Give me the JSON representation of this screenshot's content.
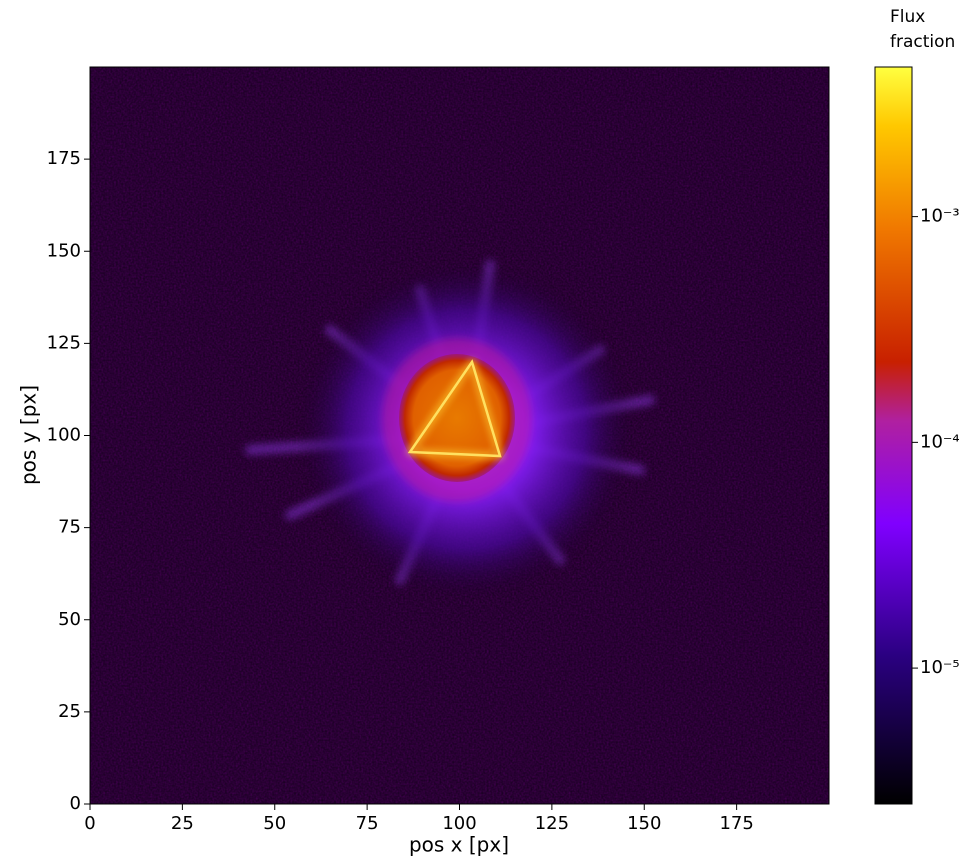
{
  "chart_data": {
    "type": "heatmap",
    "xlabel": "pos x [px]",
    "ylabel": "pos y [px]",
    "xlim": [
      0,
      200
    ],
    "ylim": [
      0,
      200
    ],
    "xticks": [
      0,
      25,
      50,
      75,
      100,
      125,
      150,
      175
    ],
    "yticks": [
      0,
      25,
      50,
      75,
      100,
      125,
      150,
      175
    ],
    "colormap": "gnuplot2",
    "colorbar_label": [
      "Flux",
      "fraction"
    ],
    "colorbar_scale": "log",
    "clim": [
      2.5e-06,
      0.0046
    ],
    "colorbar_ticks": [
      {
        "value": 0.001,
        "label": "10⁻³"
      },
      {
        "value": 0.0001,
        "label": "10⁻⁴"
      },
      {
        "value": 1e-05,
        "label": "10⁻⁵"
      }
    ]
  }
}
